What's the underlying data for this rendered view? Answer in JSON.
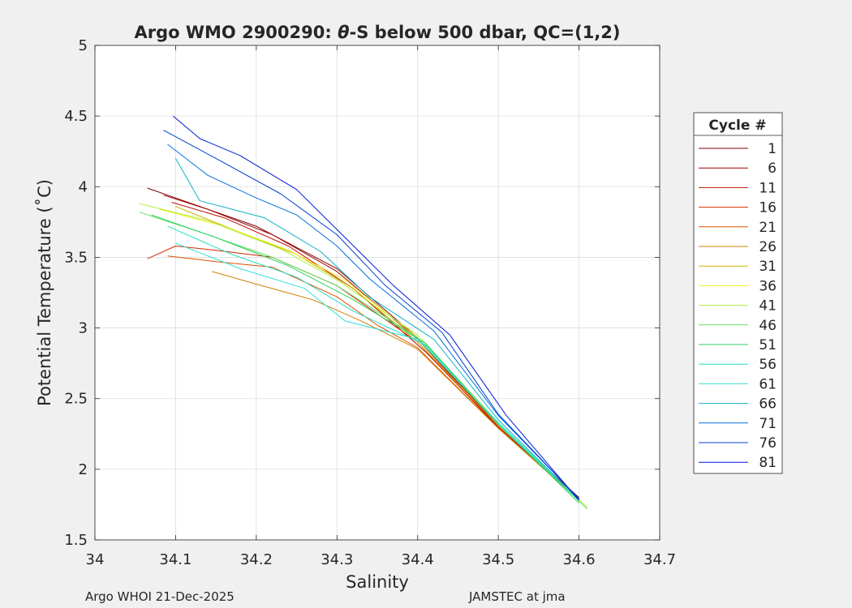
{
  "chart_data": {
    "type": "line",
    "title": "Argo WMO 2900290: θ-S below 500 dbar,  QC=(1,2)",
    "title_prefix": "Argo WMO 2900290: ",
    "title_theta": "θ",
    "title_suffix": "-S below 500 dbar,  QC=(1,2)",
    "xlabel": "Salinity",
    "ylabel": "Potential Temperature (˚C)",
    "xlim": [
      34.0,
      34.7
    ],
    "ylim": [
      1.5,
      5.0
    ],
    "xticks": [
      34.0,
      34.1,
      34.2,
      34.3,
      34.4,
      34.5,
      34.6,
      34.7
    ],
    "xtick_labels": [
      "34",
      "34.1",
      "34.2",
      "34.3",
      "34.4",
      "34.5",
      "34.6",
      "34.7"
    ],
    "yticks": [
      1.5,
      2.0,
      2.5,
      3.0,
      3.5,
      4.0,
      4.5,
      5.0
    ],
    "ytick_labels": [
      "1.5",
      "2",
      "2.5",
      "3",
      "3.5",
      "4",
      "4.5",
      "5"
    ],
    "grid": true,
    "legend": {
      "title": "Cycle #",
      "placement": "right-outside",
      "entries": [
        "1",
        "6",
        "11",
        "16",
        "21",
        "26",
        "31",
        "36",
        "41",
        "46",
        "51",
        "56",
        "61",
        "66",
        "71",
        "76",
        "81"
      ],
      "colors": [
        "#800000",
        "#a00000",
        "#c01000",
        "#d82800",
        "#e05000",
        "#d08000",
        "#d0b000",
        "#f0f020",
        "#b0f040",
        "#60e060",
        "#30d060",
        "#20e0c0",
        "#30e0d8",
        "#10b0c8",
        "#0070e0",
        "#0040d0",
        "#0018d8"
      ]
    },
    "series": [
      {
        "name": "1",
        "color": "#800000",
        "points": [
          [
            34.065,
            3.99
          ],
          [
            34.12,
            3.88
          ],
          [
            34.2,
            3.72
          ],
          [
            34.3,
            3.42
          ],
          [
            34.4,
            2.93
          ],
          [
            34.5,
            2.31
          ],
          [
            34.6,
            1.8
          ]
        ]
      },
      {
        "name": "6",
        "color": "#a00000",
        "points": [
          [
            34.085,
            3.94
          ],
          [
            34.14,
            3.84
          ],
          [
            34.22,
            3.66
          ],
          [
            34.3,
            3.4
          ],
          [
            34.4,
            2.92
          ],
          [
            34.5,
            2.3
          ],
          [
            34.6,
            1.79
          ]
        ]
      },
      {
        "name": "11",
        "color": "#c01000",
        "points": [
          [
            34.095,
            3.89
          ],
          [
            34.16,
            3.78
          ],
          [
            34.24,
            3.58
          ],
          [
            34.32,
            3.28
          ],
          [
            34.41,
            2.83
          ],
          [
            34.5,
            2.3
          ],
          [
            34.6,
            1.79
          ]
        ]
      },
      {
        "name": "16",
        "color": "#d82800",
        "points": [
          [
            34.065,
            3.49
          ],
          [
            34.1,
            3.58
          ],
          [
            34.15,
            3.55
          ],
          [
            34.22,
            3.5
          ],
          [
            34.3,
            3.3
          ],
          [
            34.4,
            2.9
          ],
          [
            34.5,
            2.29
          ],
          [
            34.6,
            1.79
          ]
        ]
      },
      {
        "name": "21",
        "color": "#e05000",
        "points": [
          [
            34.09,
            3.51
          ],
          [
            34.15,
            3.47
          ],
          [
            34.22,
            3.43
          ],
          [
            34.3,
            3.22
          ],
          [
            34.35,
            3.02
          ],
          [
            34.4,
            2.86
          ],
          [
            34.5,
            2.29
          ],
          [
            34.6,
            1.78
          ]
        ]
      },
      {
        "name": "26",
        "color": "#d08000",
        "points": [
          [
            34.145,
            3.4
          ],
          [
            34.2,
            3.31
          ],
          [
            34.27,
            3.2
          ],
          [
            34.33,
            3.05
          ],
          [
            34.4,
            2.85
          ],
          [
            34.5,
            2.29
          ],
          [
            34.6,
            1.78
          ]
        ]
      },
      {
        "name": "31",
        "color": "#d0b000",
        "points": [
          [
            34.1,
            3.86
          ],
          [
            34.17,
            3.7
          ],
          [
            34.25,
            3.52
          ],
          [
            34.32,
            3.28
          ],
          [
            34.4,
            2.9
          ],
          [
            34.5,
            2.31
          ],
          [
            34.6,
            1.79
          ]
        ]
      },
      {
        "name": "36",
        "color": "#f0f020",
        "points": [
          [
            34.08,
            3.84
          ],
          [
            34.16,
            3.72
          ],
          [
            34.24,
            3.55
          ],
          [
            34.31,
            3.34
          ],
          [
            34.4,
            2.93
          ],
          [
            34.5,
            2.32
          ],
          [
            34.6,
            1.78
          ]
        ]
      },
      {
        "name": "41",
        "color": "#b0f040",
        "points": [
          [
            34.055,
            3.88
          ],
          [
            34.14,
            3.76
          ],
          [
            34.23,
            3.56
          ],
          [
            34.3,
            3.34
          ],
          [
            34.4,
            2.95
          ],
          [
            34.5,
            2.33
          ],
          [
            34.61,
            1.73
          ]
        ]
      },
      {
        "name": "46",
        "color": "#60e060",
        "points": [
          [
            34.055,
            3.82
          ],
          [
            34.13,
            3.68
          ],
          [
            34.22,
            3.5
          ],
          [
            34.3,
            3.3
          ],
          [
            34.4,
            2.93
          ],
          [
            34.5,
            2.32
          ],
          [
            34.61,
            1.72
          ]
        ]
      },
      {
        "name": "51",
        "color": "#30d060",
        "points": [
          [
            34.07,
            3.8
          ],
          [
            34.15,
            3.64
          ],
          [
            34.24,
            3.44
          ],
          [
            34.32,
            3.2
          ],
          [
            34.41,
            2.89
          ],
          [
            34.5,
            2.32
          ],
          [
            34.6,
            1.76
          ]
        ]
      },
      {
        "name": "56",
        "color": "#20e0c0",
        "points": [
          [
            34.09,
            3.72
          ],
          [
            34.17,
            3.52
          ],
          [
            34.25,
            3.36
          ],
          [
            34.32,
            3.12
          ],
          [
            34.41,
            2.88
          ],
          [
            34.5,
            2.32
          ],
          [
            34.6,
            1.78
          ]
        ]
      },
      {
        "name": "61",
        "color": "#30e0d8",
        "points": [
          [
            34.1,
            3.6
          ],
          [
            34.18,
            3.42
          ],
          [
            34.26,
            3.28
          ],
          [
            34.31,
            3.05
          ],
          [
            34.4,
            2.92
          ],
          [
            34.5,
            2.33
          ],
          [
            34.6,
            1.78
          ]
        ]
      },
      {
        "name": "66",
        "color": "#10b0c8",
        "points": [
          [
            34.1,
            4.2
          ],
          [
            34.13,
            3.9
          ],
          [
            34.21,
            3.78
          ],
          [
            34.28,
            3.54
          ],
          [
            34.34,
            3.22
          ],
          [
            34.42,
            2.92
          ],
          [
            34.5,
            2.35
          ],
          [
            34.6,
            1.78
          ]
        ]
      },
      {
        "name": "71",
        "color": "#0070e0",
        "points": [
          [
            34.09,
            4.3
          ],
          [
            34.14,
            4.08
          ],
          [
            34.2,
            3.92
          ],
          [
            34.25,
            3.8
          ],
          [
            34.3,
            3.58
          ],
          [
            34.34,
            3.35
          ],
          [
            34.42,
            2.98
          ],
          [
            34.5,
            2.38
          ],
          [
            34.6,
            1.79
          ]
        ]
      },
      {
        "name": "76",
        "color": "#0040d0",
        "points": [
          [
            34.085,
            4.4
          ],
          [
            34.15,
            4.2
          ],
          [
            34.23,
            3.95
          ],
          [
            34.3,
            3.66
          ],
          [
            34.36,
            3.3
          ],
          [
            34.43,
            2.97
          ],
          [
            34.5,
            2.39
          ],
          [
            34.6,
            1.79
          ]
        ]
      },
      {
        "name": "81",
        "color": "#0018d8",
        "points": [
          [
            34.097,
            4.5
          ],
          [
            34.13,
            4.34
          ],
          [
            34.18,
            4.22
          ],
          [
            34.25,
            3.98
          ],
          [
            34.31,
            3.64
          ],
          [
            34.37,
            3.3
          ],
          [
            34.44,
            2.95
          ],
          [
            34.51,
            2.38
          ],
          [
            34.6,
            1.78
          ]
        ]
      }
    ]
  },
  "footer": {
    "left": "Argo WHOI 21-Dec-2025",
    "right": "JAMSTEC at jma"
  }
}
